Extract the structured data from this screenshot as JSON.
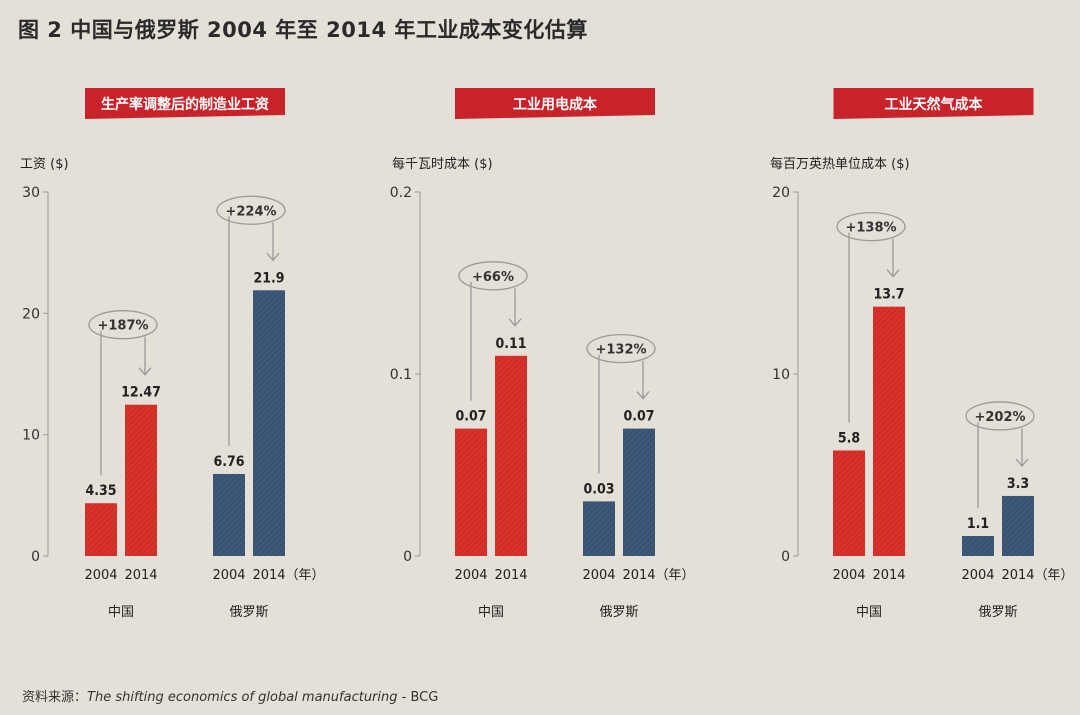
{
  "figure": {
    "title": "图 2  中国与俄罗斯 2004 年至 2014 年工业成本变化估算",
    "source_prefix": "资料来源：",
    "source_title": "The shifting economics of global manufacturing",
    "source_suffix": " - BCG"
  },
  "colors": {
    "china": "#d9322b",
    "russia": "#3c5978",
    "banner": "#c8232a",
    "axis": "#999999"
  },
  "chart_data": [
    {
      "type": "bar",
      "title": "生产率调整后的制造业工资",
      "ylabel": "工资 ($)",
      "ylim": [
        0,
        30
      ],
      "yticks": [
        "0",
        "10",
        "20",
        "30"
      ],
      "x": [
        "2004",
        "2014",
        "2004",
        "2014"
      ],
      "year_unit": "（年）",
      "groups": [
        {
          "name": "中国",
          "values": [
            4.35,
            12.47
          ],
          "labels": [
            "4.35",
            "12.47"
          ],
          "change": "+187%"
        },
        {
          "name": "俄罗斯",
          "values": [
            6.76,
            21.9
          ],
          "labels": [
            "6.76",
            "21.9"
          ],
          "change": "+224%"
        }
      ]
    },
    {
      "type": "bar",
      "title": "工业用电成本",
      "ylabel": "每千瓦时成本 ($)",
      "ylim": [
        0,
        0.2
      ],
      "yticks": [
        "0",
        "0.1",
        "0.2"
      ],
      "x": [
        "2004",
        "2014",
        "2004",
        "2014"
      ],
      "year_unit": "（年）",
      "groups": [
        {
          "name": "中国",
          "values": [
            0.07,
            0.11
          ],
          "labels": [
            "0.07",
            "0.11"
          ],
          "change": "+66%"
        },
        {
          "name": "俄罗斯",
          "values": [
            0.03,
            0.07
          ],
          "labels": [
            "0.03",
            "0.07"
          ],
          "change": "+132%"
        }
      ]
    },
    {
      "type": "bar",
      "title": "工业天然气成本",
      "ylabel": "每百万英热单位成本 ($)",
      "ylim": [
        0,
        20
      ],
      "yticks": [
        "0",
        "10",
        "20"
      ],
      "x": [
        "2004",
        "2014",
        "2004",
        "2014"
      ],
      "year_unit": "（年）",
      "groups": [
        {
          "name": "中国",
          "values": [
            5.8,
            13.7
          ],
          "labels": [
            "5.8",
            "13.7"
          ],
          "change": "+138%"
        },
        {
          "name": "俄罗斯",
          "values": [
            1.1,
            3.3
          ],
          "labels": [
            "1.1",
            "3.3"
          ],
          "change": "+202%"
        }
      ]
    }
  ]
}
